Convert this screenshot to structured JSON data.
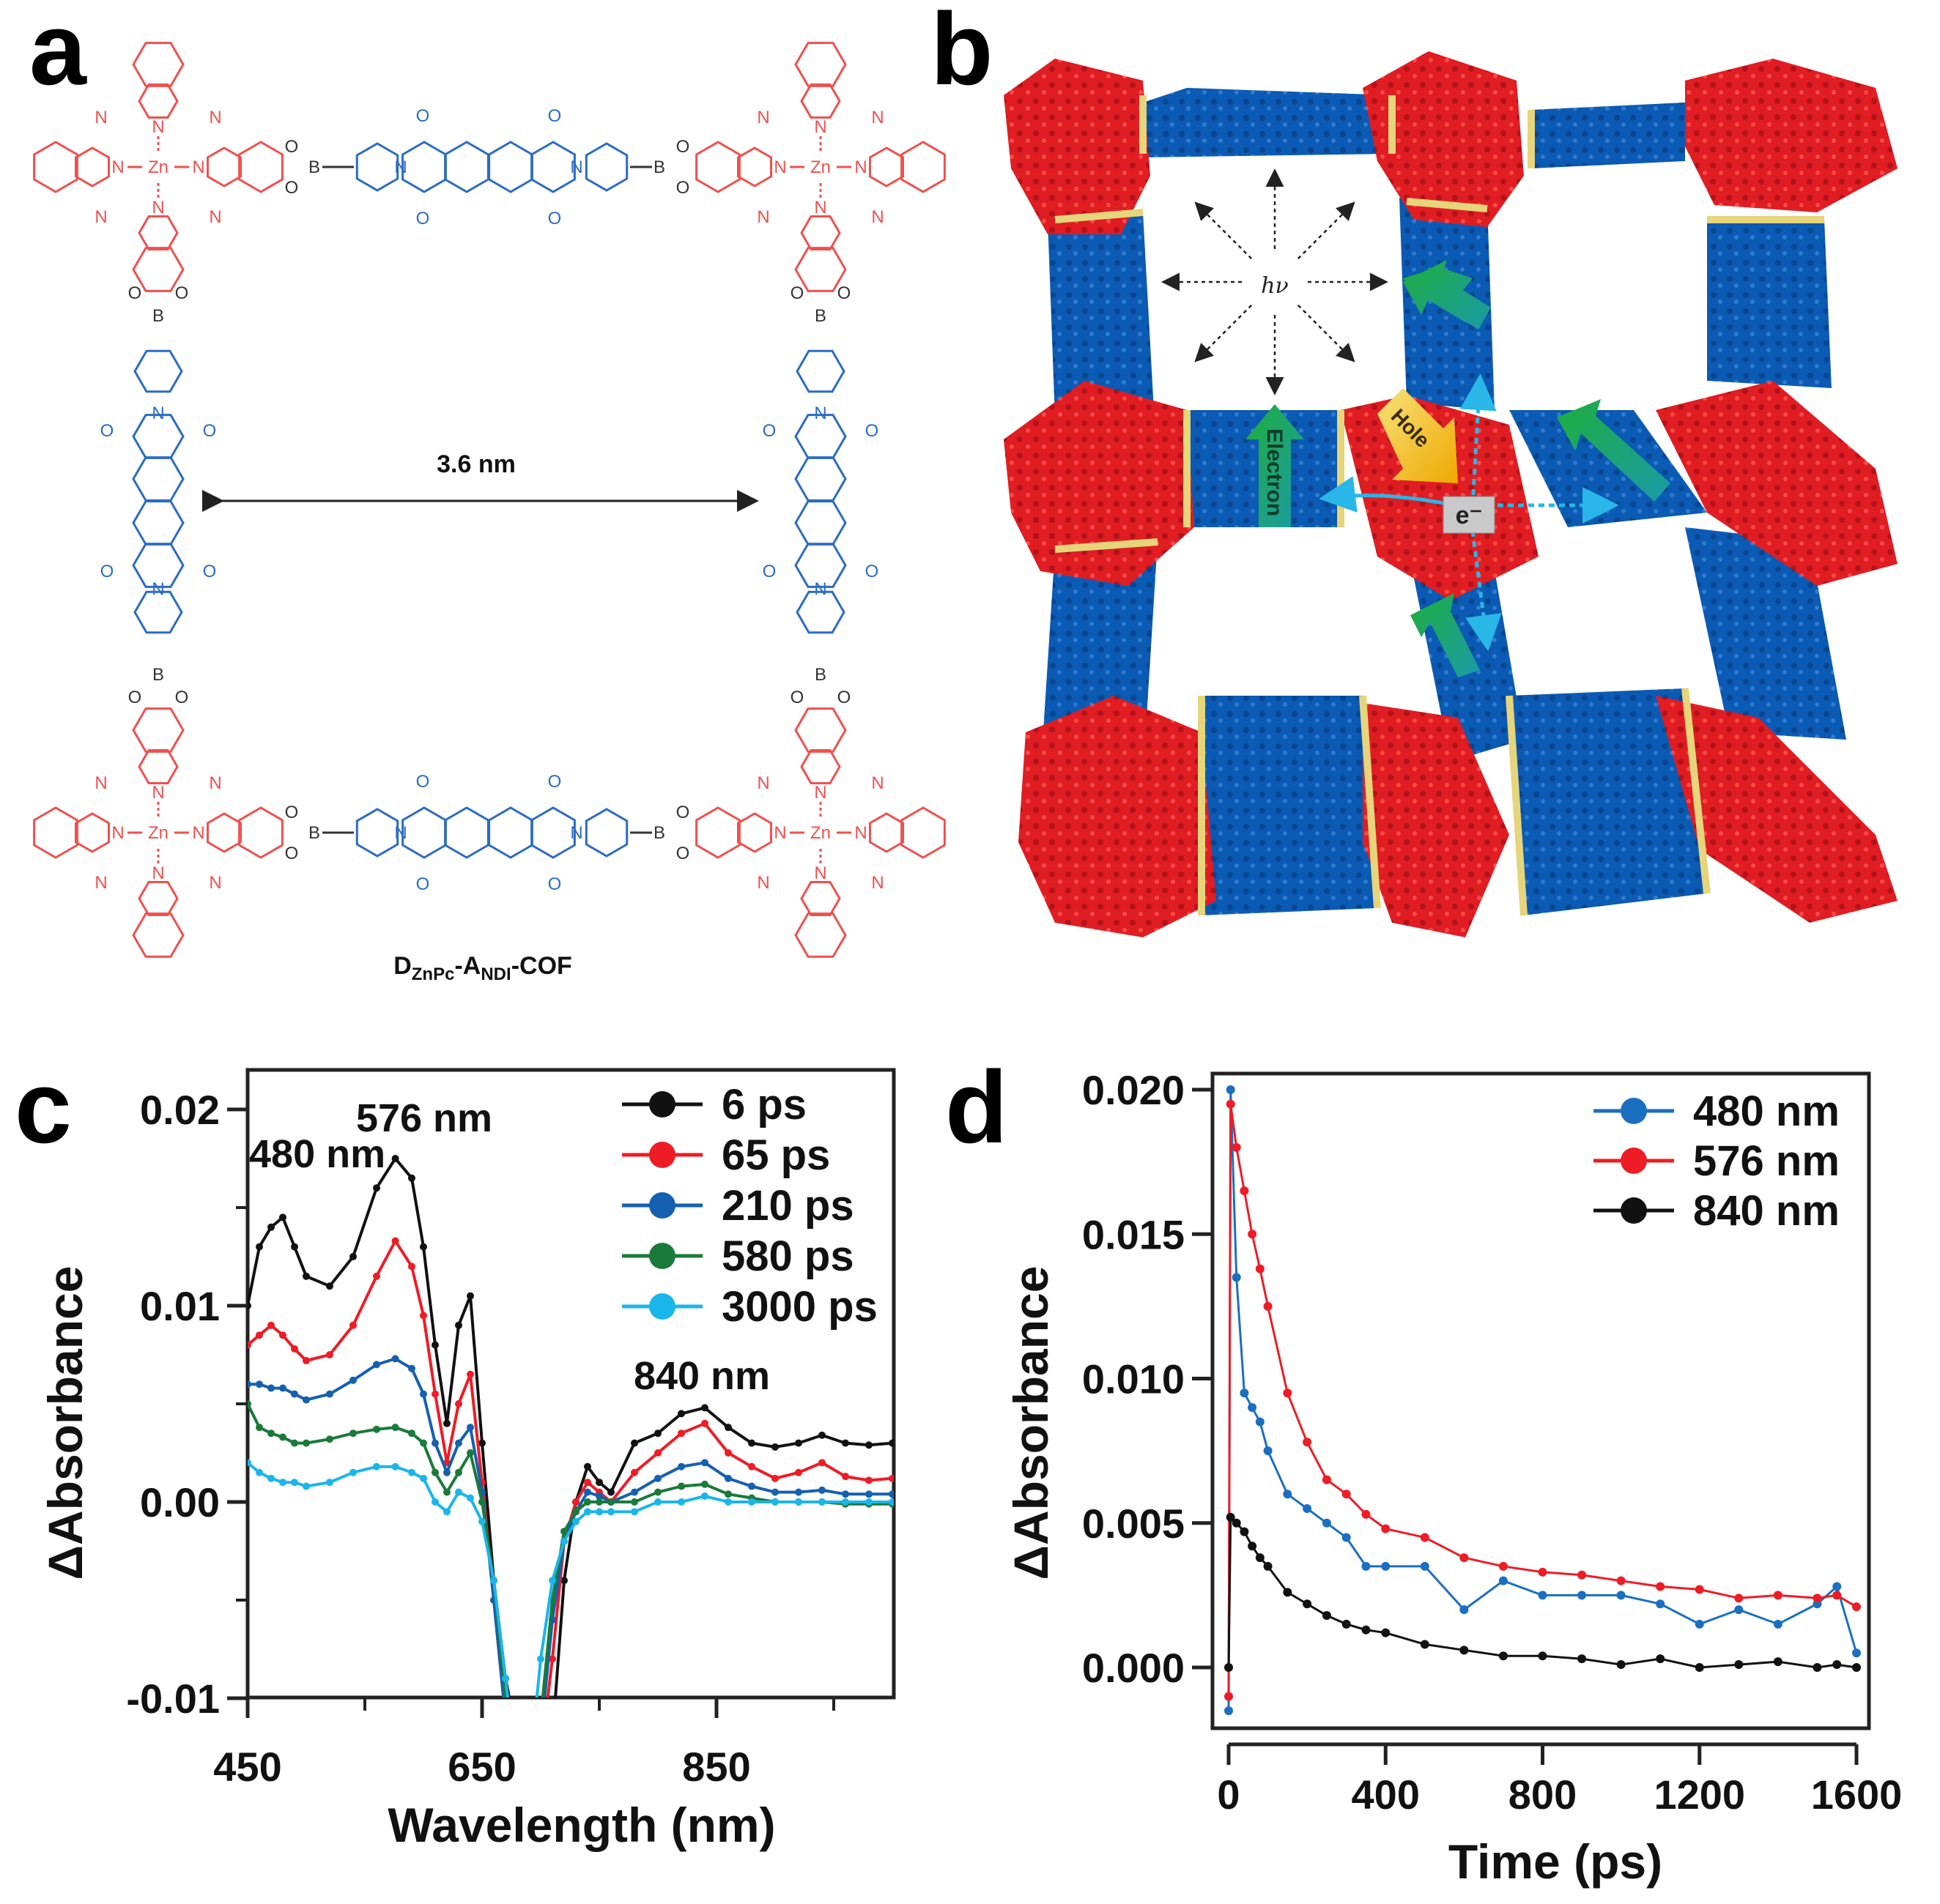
{
  "panel_a": {
    "letter": "a",
    "distance_label": "3.6 nm",
    "caption_main": "D",
    "caption_sub1": "ZnPc",
    "caption_mid": "-A",
    "caption_sub2": "NDI",
    "caption_end": "-COF",
    "atoms": {
      "zn": "Zn",
      "n": "N",
      "o": "O",
      "b": "B"
    },
    "colors": {
      "donor": "#f0504f",
      "acceptor": "#2b6cc4",
      "linker": "#333333"
    }
  },
  "panel_b": {
    "letter": "b",
    "hv_label": "hν",
    "electron_label": "Electron",
    "hole_label": "Hole",
    "e_label": "e⁻",
    "colors": {
      "donor": "#e01d22",
      "acceptor": "#0b5ab3",
      "boronate": "#e6d57a",
      "arrow_green": "#1fa34a",
      "arrow_hole": "#f2b705",
      "transfer": "#29b6e8"
    }
  },
  "chart_data": [
    {
      "panel": "c",
      "type": "line",
      "letter": "c",
      "xlabel": "Wavelength (nm)",
      "ylabel": "ΔAbsorbance",
      "xlim": [
        450,
        1000
      ],
      "ylim": [
        -0.01,
        0.022
      ],
      "xticks": [
        {
          "v": 450,
          "label": "450"
        },
        {
          "v": 650,
          "label": "650"
        },
        {
          "v": 850,
          "label": "850"
        }
      ],
      "xminor": [
        550,
        750,
        950
      ],
      "yticks": [
        {
          "v": 0.02,
          "label": "0.02"
        },
        {
          "v": 0.01,
          "label": "0.01"
        },
        {
          "v": 0.0,
          "label": "0.00"
        },
        {
          "v": -0.01,
          "label": "-0.01"
        }
      ],
      "yminor": [
        0.015,
        0.005,
        -0.005
      ],
      "legend_position": "top-right",
      "annotations": [
        {
          "text": "576 nm",
          "x": 576
        },
        {
          "text": "480 nm",
          "x": 480
        },
        {
          "text": "840 nm",
          "x": 840
        }
      ],
      "x": [
        450,
        460,
        470,
        480,
        490,
        500,
        520,
        540,
        560,
        576,
        590,
        600,
        610,
        620,
        630,
        640,
        650,
        660,
        670,
        680,
        690,
        700,
        710,
        720,
        730,
        740,
        750,
        760,
        780,
        800,
        820,
        840,
        860,
        880,
        900,
        920,
        940,
        960,
        980,
        1000
      ],
      "series": [
        {
          "name": "6 ps",
          "color": "#111111",
          "values": [
            0.01,
            0.013,
            0.014,
            0.0145,
            0.013,
            0.0115,
            0.011,
            0.0125,
            0.016,
            0.0175,
            0.0165,
            0.013,
            0.008,
            0.004,
            0.009,
            0.0105,
            0.003,
            -0.004,
            -0.009,
            -0.012,
            -0.014,
            -0.014,
            -0.012,
            -0.004,
            0.0,
            0.0018,
            0.001,
            0.0005,
            0.003,
            0.0035,
            0.0045,
            0.0048,
            0.0038,
            0.003,
            0.0028,
            0.003,
            0.0034,
            0.003,
            0.0029,
            0.003
          ]
        },
        {
          "name": "65 ps",
          "color": "#ee1c25",
          "values": [
            0.008,
            0.0085,
            0.009,
            0.0085,
            0.0078,
            0.0072,
            0.0075,
            0.009,
            0.0115,
            0.0133,
            0.012,
            0.0095,
            0.0055,
            0.002,
            0.005,
            0.0065,
            0.001,
            -0.005,
            -0.011,
            -0.014,
            -0.014,
            -0.013,
            -0.008,
            -0.002,
            0.0,
            0.001,
            0.0005,
            0.0,
            0.0015,
            0.0025,
            0.0035,
            0.004,
            0.0025,
            0.0018,
            0.0012,
            0.0015,
            0.002,
            0.0013,
            0.0011,
            0.0012
          ]
        },
        {
          "name": "210 ps",
          "color": "#1560b0",
          "values": [
            0.006,
            0.006,
            0.0058,
            0.0058,
            0.0055,
            0.0052,
            0.0055,
            0.0062,
            0.007,
            0.0073,
            0.0068,
            0.0055,
            0.003,
            0.0015,
            0.003,
            0.0038,
            0.0005,
            -0.005,
            -0.011,
            -0.014,
            -0.014,
            -0.012,
            -0.006,
            -0.002,
            -0.0005,
            0.0005,
            0.0003,
            0.0,
            0.0005,
            0.0012,
            0.0018,
            0.002,
            0.0012,
            0.0008,
            0.0005,
            0.0005,
            0.0006,
            0.0004,
            0.0004,
            0.0004
          ]
        },
        {
          "name": "580 ps",
          "color": "#1a7a3a",
          "values": [
            0.005,
            0.0038,
            0.0035,
            0.0033,
            0.003,
            0.003,
            0.0032,
            0.0035,
            0.0037,
            0.0038,
            0.0035,
            0.003,
            0.0015,
            0.0005,
            0.0015,
            0.0025,
            0.0,
            -0.004,
            -0.01,
            -0.014,
            -0.014,
            -0.011,
            -0.005,
            -0.0015,
            -0.0005,
            0.0,
            0.0,
            0.0,
            0.0,
            0.0005,
            0.0008,
            0.0009,
            0.0004,
            0.0002,
            0.0,
            0.0,
            0.0,
            -0.0001,
            -0.0001,
            -0.0001
          ]
        },
        {
          "name": "3000 ps",
          "color": "#1ab6ea",
          "values": [
            0.002,
            0.0015,
            0.0012,
            0.001,
            0.001,
            0.0008,
            0.001,
            0.0015,
            0.0018,
            0.0018,
            0.0015,
            0.0012,
            0.0,
            -0.0005,
            0.0005,
            0.0002,
            -0.001,
            -0.004,
            -0.009,
            -0.014,
            -0.014,
            -0.008,
            -0.004,
            -0.002,
            -0.001,
            -0.0005,
            -0.0005,
            -0.0005,
            -0.0005,
            0.0,
            0.0,
            0.0003,
            0.0,
            0.0,
            0.0,
            0.0,
            0.0,
            0.0,
            0.0,
            0.0
          ]
        }
      ]
    },
    {
      "panel": "d",
      "type": "line",
      "letter": "d",
      "xlabel": "Time (ps)",
      "ylabel": "ΔAbsorbance",
      "xlim": [
        -30,
        1630
      ],
      "ylim": [
        -0.0022,
        0.0203
      ],
      "xticks": [
        {
          "v": 0,
          "label": "0"
        },
        {
          "v": 400,
          "label": "400"
        },
        {
          "v": 800,
          "label": "800"
        },
        {
          "v": 1200,
          "label": "1200"
        },
        {
          "v": 1600,
          "label": "1600"
        }
      ],
      "yticks": [
        {
          "v": 0.02,
          "label": "0.020"
        },
        {
          "v": 0.015,
          "label": "0.015"
        },
        {
          "v": 0.01,
          "label": "0.010"
        },
        {
          "v": 0.005,
          "label": "0.005"
        },
        {
          "v": 0.0,
          "label": "0.000"
        }
      ],
      "legend_position": "top-right",
      "x": [
        0,
        5,
        20,
        40,
        60,
        80,
        100,
        150,
        200,
        250,
        300,
        350,
        400,
        500,
        600,
        700,
        800,
        900,
        1000,
        1100,
        1200,
        1300,
        1400,
        1500,
        1550,
        1600
      ],
      "series": [
        {
          "name": "480 nm",
          "color": "#1a6fc0",
          "values": [
            -0.0015,
            0.02,
            0.0135,
            0.0095,
            0.009,
            0.0085,
            0.0075,
            0.006,
            0.0055,
            0.005,
            0.0045,
            0.0035,
            0.0035,
            0.0035,
            0.002,
            0.003,
            0.0025,
            0.0025,
            0.0025,
            0.0022,
            0.0015,
            0.002,
            0.0015,
            0.0022,
            0.0028,
            0.0005
          ]
        },
        {
          "name": "576 nm",
          "color": "#ee1c25",
          "values": [
            -0.001,
            0.0195,
            0.018,
            0.0165,
            0.015,
            0.0138,
            0.0125,
            0.0095,
            0.0078,
            0.0065,
            0.006,
            0.0053,
            0.0048,
            0.0045,
            0.0038,
            0.0035,
            0.0033,
            0.0032,
            0.003,
            0.0028,
            0.0027,
            0.0024,
            0.0025,
            0.0024,
            0.0025,
            0.0021
          ]
        },
        {
          "name": "840 nm",
          "color": "#111111",
          "values": [
            0.0,
            0.0052,
            0.005,
            0.0047,
            0.0042,
            0.0038,
            0.0035,
            0.0026,
            0.0022,
            0.0018,
            0.0015,
            0.0013,
            0.0012,
            0.0008,
            0.0006,
            0.0004,
            0.0004,
            0.0003,
            0.0001,
            0.0003,
            0.0,
            0.0001,
            0.0002,
            0.0,
            0.0001,
            0.0
          ]
        }
      ]
    }
  ]
}
